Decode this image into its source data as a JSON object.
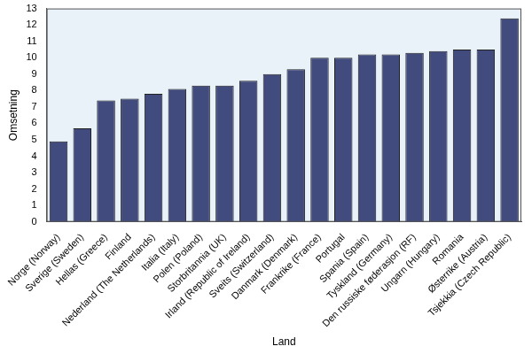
{
  "chart_data": {
    "type": "bar",
    "x_label": "Land",
    "y_label": "Omsetning",
    "categories": [
      "Norge (Norway)",
      "Sverige (Sweden)",
      "Hellas (Greece)",
      "Finland",
      "Nederland (The Netherlands)",
      "Italia (Italy)",
      "Polen (Poland)",
      "Storbritannia (UK)",
      "Irland (Republic of Ireland)",
      "Sveits (Switzerland)",
      "Danmark (Denmark)",
      "Frankrike (France)",
      "Portugal",
      "Spania (Spain)",
      "Tyskland (Germany)",
      "Den russiske føderasjon (RF)",
      "Ungarn (Hungary)",
      "Romania",
      "Østerrike (Austria)",
      "Tsjekkia (Czech Republic)"
    ],
    "values": [
      4.9,
      5.7,
      7.4,
      7.5,
      7.8,
      8.1,
      8.3,
      8.3,
      8.6,
      9.0,
      9.3,
      10.0,
      10.0,
      10.2,
      10.2,
      10.3,
      10.4,
      10.5,
      10.5,
      12.4
    ],
    "color": "#414b7e",
    "ylim": [
      0,
      13
    ],
    "yticks": [
      0,
      1,
      2,
      3,
      4,
      5,
      6,
      7,
      8,
      9,
      10,
      11,
      12,
      13
    ],
    "grid": false
  }
}
